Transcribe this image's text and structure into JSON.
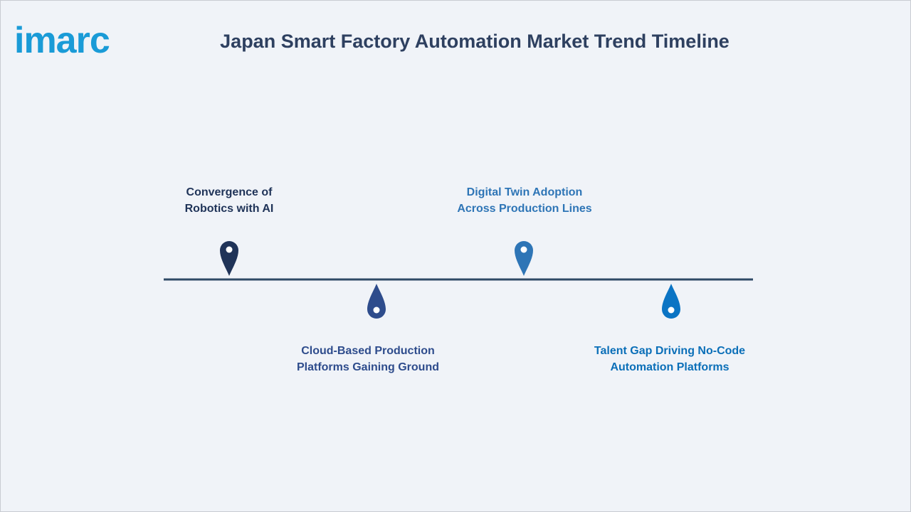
{
  "logo": "imarc",
  "header": {
    "title": "Japan Smart Factory Automation Market Trend Timeline"
  },
  "timeline": {
    "items": [
      {
        "lines": [
          "Convergence of",
          "Robotics with AI"
        ]
      },
      {
        "lines": [
          "Cloud-Based Production",
          "Platforms Gaining Ground"
        ]
      },
      {
        "lines": [
          "Digital Twin Adoption",
          "Across Production Lines"
        ]
      },
      {
        "lines": [
          "Talent Gap Driving No-Code",
          "Automation Platforms"
        ]
      }
    ]
  }
}
